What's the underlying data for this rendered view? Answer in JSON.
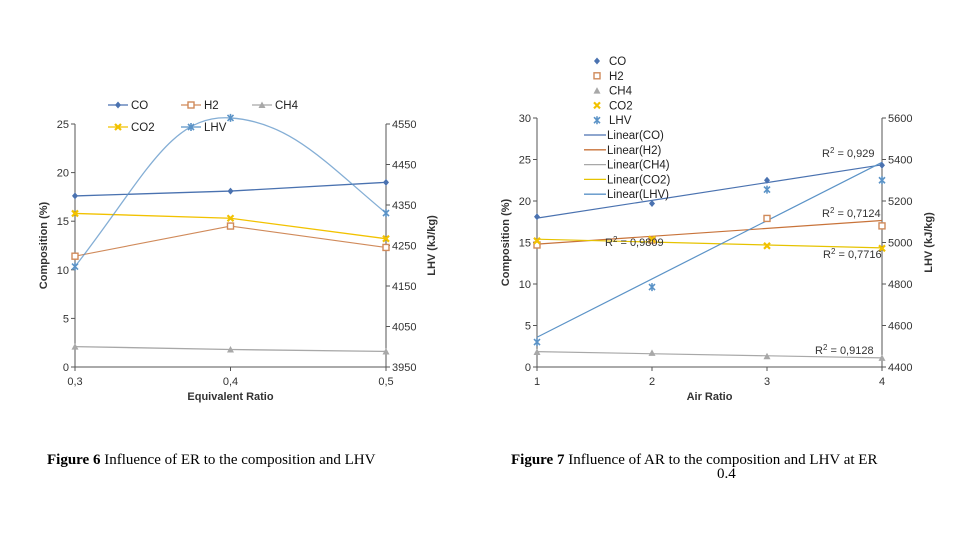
{
  "chart_data": [
    {
      "type": "line",
      "caption_label": "Figure 6",
      "caption_text": "Influence of ER to the composition and LHV",
      "xlabel": "Equivalent Ratio",
      "ylabel": "Composition (%)",
      "y2label": "LHV (kJ/kg)",
      "categories": [
        "0,3",
        "0,4",
        "0,5"
      ],
      "ylim": [
        0,
        25
      ],
      "yticks": [
        "0",
        "5",
        "10",
        "15",
        "20",
        "25"
      ],
      "y2lim": [
        3950,
        4550
      ],
      "y2ticks": [
        "3950",
        "4050",
        "4150",
        "4250",
        "4350",
        "4450",
        "4550"
      ],
      "legend_position": "top",
      "series": [
        {
          "name": "CO",
          "axis": "left",
          "color": "#4a72b0",
          "marker": "diamond",
          "values": [
            17.6,
            18.1,
            19.0
          ]
        },
        {
          "name": "H2",
          "axis": "left",
          "color": "#d08a5a",
          "marker": "square",
          "values": [
            11.4,
            14.5,
            12.3
          ]
        },
        {
          "name": "CH4",
          "axis": "left",
          "color": "#a8a8a8",
          "marker": "triangle",
          "values": [
            2.1,
            1.8,
            1.6
          ]
        },
        {
          "name": "CO2",
          "axis": "left",
          "color": "#f2c200",
          "marker": "x",
          "values": [
            15.8,
            15.3,
            13.2
          ]
        },
        {
          "name": "LHV",
          "axis": "right",
          "color": "#5b93c7",
          "marker": "star",
          "values": [
            4198,
            4565,
            4330
          ]
        }
      ]
    },
    {
      "type": "scatter",
      "caption_label": "Figure 7",
      "caption_text": "Influence of AR to the composition and LHV at ER",
      "caption_sub": "0.4",
      "xlabel": "Air Ratio",
      "ylabel": "Composition (%)",
      "y2label": "LHV (kJ/kg)",
      "xlim": [
        1,
        4
      ],
      "xticks": [
        "1",
        "2",
        "3",
        "4"
      ],
      "ylim": [
        0,
        30
      ],
      "yticks": [
        "0",
        "5",
        "10",
        "15",
        "20",
        "25",
        "30"
      ],
      "y2lim": [
        4400,
        5600
      ],
      "y2ticks": [
        "4400",
        "4600",
        "4800",
        "5000",
        "5200",
        "5400",
        "5600"
      ],
      "legend_position": "top",
      "series": [
        {
          "name": "CO",
          "axis": "left",
          "color": "#4a72b0",
          "marker": "diamond",
          "x": [
            1,
            2,
            3,
            4
          ],
          "values": [
            18.1,
            19.7,
            22.5,
            24.3
          ]
        },
        {
          "name": "H2",
          "axis": "left",
          "color": "#d08a5a",
          "marker": "square",
          "x": [
            1,
            2,
            3,
            4
          ],
          "values": [
            14.7,
            15.3,
            17.9,
            17.0
          ]
        },
        {
          "name": "CH4",
          "axis": "left",
          "color": "#a8a8a8",
          "marker": "triangle",
          "x": [
            1,
            2,
            3,
            4
          ],
          "values": [
            1.8,
            1.7,
            1.3,
            1.1
          ]
        },
        {
          "name": "CO2",
          "axis": "left",
          "color": "#f2c200",
          "marker": "x",
          "x": [
            1,
            2,
            3,
            4
          ],
          "values": [
            15.2,
            15.4,
            14.6,
            14.3
          ]
        },
        {
          "name": "LHV",
          "axis": "right",
          "color": "#5b93c7",
          "marker": "star",
          "x": [
            1,
            2,
            3,
            4
          ],
          "values": [
            4520,
            4785,
            5255,
            5300
          ]
        }
      ],
      "trendlines": [
        {
          "name": "Linear(CO)",
          "of": "CO",
          "color": "#4a72b0",
          "r2": "R2 = 0,929"
        },
        {
          "name": "Linear(H2)",
          "of": "H2",
          "color": "#c8733a",
          "r2": "R2 = 0,7124"
        },
        {
          "name": "Linear(CH4)",
          "of": "CH4",
          "color": "#a8a8a8",
          "r2": "R2 = 0,9128"
        },
        {
          "name": "Linear(CO2)",
          "of": "CO2",
          "color": "#e6c300",
          "r2": "R2 = 0,7716"
        },
        {
          "name": "Linear(LHV)",
          "of": "LHV",
          "color": "#5b93c7",
          "r2": "R2 = 0,9809"
        }
      ]
    }
  ]
}
